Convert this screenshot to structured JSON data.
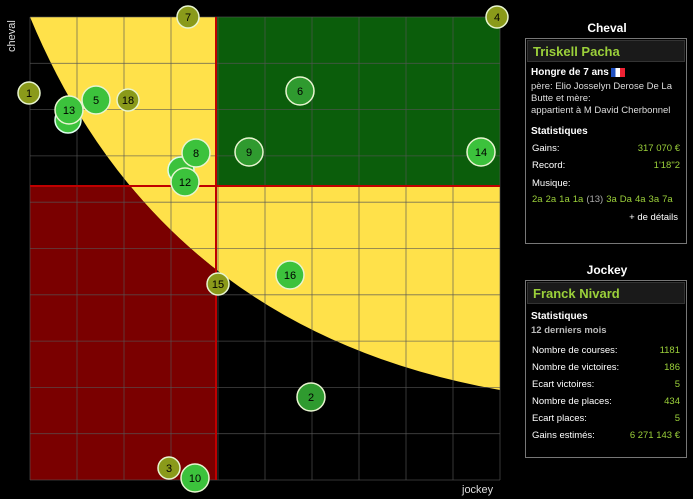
{
  "axes": {
    "y_label": "cheval",
    "x_label": "jockey"
  },
  "colors": {
    "background": "#000000",
    "yellow": "#ffe14a",
    "green_zone": "#0b5d0b",
    "red_zone": "#7a0000",
    "grid": "#555555",
    "crosshair": "#c00000"
  },
  "markers": [
    {
      "label": "1",
      "level": "olive"
    },
    {
      "label": "2",
      "level": "mid"
    },
    {
      "label": "3",
      "level": "olive"
    },
    {
      "label": "4",
      "level": "olive"
    },
    {
      "label": "5",
      "level": "light"
    },
    {
      "label": "6",
      "level": "mid"
    },
    {
      "label": "7",
      "level": "olive"
    },
    {
      "label": "8",
      "level": "light"
    },
    {
      "label": "9",
      "level": "mid"
    },
    {
      "label": "10",
      "level": "light"
    },
    {
      "label": "12",
      "level": "light"
    },
    {
      "label": "13",
      "level": "light"
    },
    {
      "label": "14",
      "level": "light"
    },
    {
      "label": "15",
      "level": "olive"
    },
    {
      "label": "16",
      "level": "light"
    },
    {
      "label": "18",
      "level": "olive"
    }
  ],
  "cheval": {
    "title": "Cheval",
    "name": "Triskell Pacha",
    "subtitle": "Hongre de 7 ans",
    "pere": "père: Elio Josselyn Derose De La",
    "pere2": "Butte et mère:",
    "owner": "appartient à M David Cherbonnel",
    "stats_title": "Statistiques",
    "gains_label": "Gains:",
    "gains_value": "317 070 €",
    "record_label": "Record:",
    "record_value": "1'18\"2",
    "musique_label": "Musique:",
    "musique": [
      "2a",
      "2a",
      "1a",
      "1a",
      "(13)",
      "3a",
      "Da",
      "4a",
      "3a",
      "7a"
    ],
    "more_link": "+ de détails"
  },
  "jockey": {
    "title": "Jockey",
    "name": "Franck Nivard",
    "stats_title": "Statistiques",
    "period": "12 derniers mois",
    "rows": [
      {
        "label": "Nombre de courses:",
        "value": "1181"
      },
      {
        "label": "Nombre de victoires:",
        "value": "186"
      },
      {
        "label": "Ecart victoires:",
        "value": "5"
      },
      {
        "label": "Nombre de places:",
        "value": "434"
      },
      {
        "label": "Ecart places:",
        "value": "5"
      },
      {
        "label": "Gains estimés:",
        "value": "6 271 143 €"
      }
    ]
  }
}
